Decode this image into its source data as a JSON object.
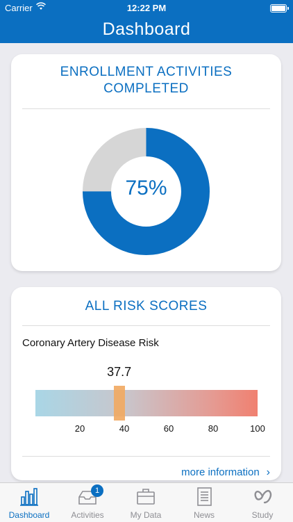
{
  "status_bar": {
    "carrier": "Carrier",
    "time": "12:22 PM"
  },
  "nav": {
    "title": "Dashboard"
  },
  "enrollment_card": {
    "title_line1": "ENROLLMENT ACTIVITIES",
    "title_line2": "COMPLETED",
    "percent_label": "75%",
    "completed_fraction": 0.75,
    "colors": {
      "completed": "#0b6fc1",
      "remaining": "#d6d6d6"
    }
  },
  "risk_card": {
    "title": "ALL RISK SCORES",
    "risk_name": "Coronary Artery Disease Risk",
    "score_label": "37.7",
    "score": 37.7,
    "scale_min": 0,
    "scale_max": 100,
    "ticks": [
      "20",
      "40",
      "60",
      "80",
      "100"
    ],
    "more_info": "more information",
    "chevron": "›"
  },
  "tab_bar": {
    "tabs": [
      {
        "label": "Dashboard",
        "icon": "bar-chart-icon",
        "active": true
      },
      {
        "label": "Activities",
        "icon": "inbox-icon",
        "badge": "1",
        "active": false
      },
      {
        "label": "My Data",
        "icon": "briefcase-icon",
        "active": false
      },
      {
        "label": "News",
        "icon": "newspaper-icon",
        "active": false
      },
      {
        "label": "Study",
        "icon": "study-logo-icon",
        "active": false
      }
    ]
  }
}
